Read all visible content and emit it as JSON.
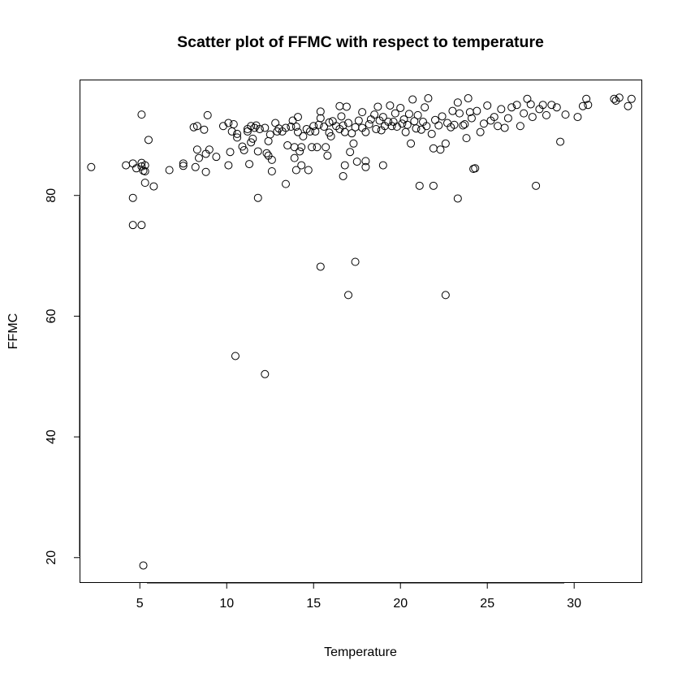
{
  "chart_data": {
    "type": "scatter",
    "title": "Scatter plot of FFMC with respect to temperature",
    "xlabel": "Temperature",
    "ylabel": "FFMC",
    "xlim": [
      1.53,
      33.87
    ],
    "ylim": [
      15.8,
      99.2
    ],
    "xticks": [
      5,
      10,
      15,
      20,
      25,
      30
    ],
    "yticks": [
      20,
      40,
      60,
      80
    ],
    "xtick_labels": [
      "5",
      "10",
      "15",
      "20",
      "25",
      "30"
    ],
    "ytick_labels": [
      "20",
      "40",
      "60",
      "80"
    ],
    "grid": false,
    "marker": "open-circle",
    "marker_color": "#000000",
    "points": [
      [
        2.2,
        84.7
      ],
      [
        4.2,
        85.0
      ],
      [
        4.6,
        85.3
      ],
      [
        4.6,
        79.6
      ],
      [
        4.6,
        75.1
      ],
      [
        4.8,
        84.5
      ],
      [
        5.1,
        85.4
      ],
      [
        5.1,
        84.8
      ],
      [
        5.1,
        75.1
      ],
      [
        5.1,
        93.4
      ],
      [
        5.2,
        84.1
      ],
      [
        5.2,
        18.7
      ],
      [
        5.3,
        82.1
      ],
      [
        5.3,
        84.0
      ],
      [
        5.3,
        85.0
      ],
      [
        5.5,
        89.2
      ],
      [
        5.8,
        81.5
      ],
      [
        6.7,
        84.2
      ],
      [
        7.5,
        84.9
      ],
      [
        7.5,
        85.3
      ],
      [
        8.1,
        91.3
      ],
      [
        8.2,
        84.7
      ],
      [
        8.3,
        87.6
      ],
      [
        8.3,
        91.5
      ],
      [
        8.4,
        86.2
      ],
      [
        8.7,
        90.9
      ],
      [
        8.8,
        83.9
      ],
      [
        8.8,
        86.9
      ],
      [
        8.9,
        93.3
      ],
      [
        9.0,
        87.6
      ],
      [
        9.4,
        86.4
      ],
      [
        9.8,
        91.5
      ],
      [
        10.1,
        92.0
      ],
      [
        10.1,
        85.0
      ],
      [
        10.2,
        87.2
      ],
      [
        10.3,
        90.6
      ],
      [
        10.4,
        91.8
      ],
      [
        10.5,
        53.4
      ],
      [
        10.6,
        89.6
      ],
      [
        10.6,
        90.2
      ],
      [
        10.9,
        88.1
      ],
      [
        11.0,
        87.5
      ],
      [
        11.2,
        91.0
      ],
      [
        11.2,
        90.6
      ],
      [
        11.3,
        85.2
      ],
      [
        11.4,
        88.8
      ],
      [
        11.4,
        91.5
      ],
      [
        11.5,
        89.4
      ],
      [
        11.6,
        91.2
      ],
      [
        11.7,
        91.6
      ],
      [
        11.8,
        79.6
      ],
      [
        11.8,
        87.3
      ],
      [
        11.9,
        91.0
      ],
      [
        12.2,
        91.2
      ],
      [
        12.2,
        50.4
      ],
      [
        12.3,
        87.0
      ],
      [
        12.4,
        86.6
      ],
      [
        12.4,
        89.0
      ],
      [
        12.5,
        90.1
      ],
      [
        12.6,
        85.9
      ],
      [
        12.6,
        84.0
      ],
      [
        12.8,
        92.0
      ],
      [
        12.9,
        90.6
      ],
      [
        13.0,
        91.1
      ],
      [
        13.2,
        90.6
      ],
      [
        13.4,
        91.2
      ],
      [
        13.4,
        81.9
      ],
      [
        13.5,
        88.3
      ],
      [
        13.7,
        91.4
      ],
      [
        13.8,
        92.4
      ],
      [
        13.9,
        86.2
      ],
      [
        13.9,
        88.0
      ],
      [
        14.0,
        91.4
      ],
      [
        14.0,
        84.2
      ],
      [
        14.1,
        90.5
      ],
      [
        14.1,
        93.0
      ],
      [
        14.2,
        87.3
      ],
      [
        14.3,
        88.0
      ],
      [
        14.3,
        85.0
      ],
      [
        14.4,
        89.8
      ],
      [
        14.6,
        91.0
      ],
      [
        14.7,
        84.2
      ],
      [
        14.8,
        90.6
      ],
      [
        14.9,
        88.0
      ],
      [
        15.0,
        91.5
      ],
      [
        15.1,
        90.6
      ],
      [
        15.2,
        88.0
      ],
      [
        15.3,
        91.7
      ],
      [
        15.4,
        92.8
      ],
      [
        15.4,
        68.2
      ],
      [
        15.4,
        93.9
      ],
      [
        15.6,
        91.4
      ],
      [
        15.7,
        88.0
      ],
      [
        15.8,
        86.6
      ],
      [
        15.9,
        92.1
      ],
      [
        15.9,
        90.4
      ],
      [
        16.0,
        89.8
      ],
      [
        16.1,
        92.3
      ],
      [
        16.3,
        91.5
      ],
      [
        16.5,
        91.0
      ],
      [
        16.5,
        94.8
      ],
      [
        16.6,
        93.1
      ],
      [
        16.7,
        91.6
      ],
      [
        16.7,
        83.2
      ],
      [
        16.8,
        90.5
      ],
      [
        16.8,
        85.0
      ],
      [
        16.9,
        94.7
      ],
      [
        17.0,
        92.0
      ],
      [
        17.0,
        63.5
      ],
      [
        17.1,
        87.2
      ],
      [
        17.2,
        90.3
      ],
      [
        17.3,
        88.6
      ],
      [
        17.4,
        69.0
      ],
      [
        17.4,
        91.3
      ],
      [
        17.5,
        85.6
      ],
      [
        17.6,
        92.4
      ],
      [
        17.8,
        91.2
      ],
      [
        17.8,
        93.8
      ],
      [
        18.0,
        90.5
      ],
      [
        18.0,
        85.7
      ],
      [
        18.0,
        84.7
      ],
      [
        18.2,
        91.8
      ],
      [
        18.3,
        92.6
      ],
      [
        18.5,
        93.4
      ],
      [
        18.6,
        91.0
      ],
      [
        18.7,
        94.7
      ],
      [
        18.8,
        92.4
      ],
      [
        18.9,
        90.8
      ],
      [
        19.0,
        93.0
      ],
      [
        19.0,
        85.0
      ],
      [
        19.1,
        91.5
      ],
      [
        19.3,
        92.2
      ],
      [
        19.4,
        94.9
      ],
      [
        19.5,
        91.5
      ],
      [
        19.6,
        92.2
      ],
      [
        19.7,
        93.6
      ],
      [
        19.8,
        91.4
      ],
      [
        20.0,
        94.5
      ],
      [
        20.1,
        91.9
      ],
      [
        20.2,
        92.6
      ],
      [
        20.3,
        90.5
      ],
      [
        20.4,
        91.7
      ],
      [
        20.5,
        93.5
      ],
      [
        20.6,
        88.6
      ],
      [
        20.7,
        95.9
      ],
      [
        20.8,
        92.3
      ],
      [
        20.9,
        91.1
      ],
      [
        21.0,
        93.3
      ],
      [
        21.1,
        81.6
      ],
      [
        21.2,
        90.9
      ],
      [
        21.3,
        92.2
      ],
      [
        21.4,
        94.6
      ],
      [
        21.5,
        91.5
      ],
      [
        21.6,
        96.1
      ],
      [
        21.8,
        90.2
      ],
      [
        21.9,
        87.8
      ],
      [
        21.9,
        81.6
      ],
      [
        22.0,
        92.5
      ],
      [
        22.2,
        91.6
      ],
      [
        22.3,
        87.6
      ],
      [
        22.4,
        93.1
      ],
      [
        22.6,
        63.5
      ],
      [
        22.6,
        88.6
      ],
      [
        22.7,
        92.0
      ],
      [
        22.9,
        91.3
      ],
      [
        23.0,
        94.0
      ],
      [
        23.1,
        91.7
      ],
      [
        23.3,
        95.4
      ],
      [
        23.3,
        79.5
      ],
      [
        23.4,
        93.6
      ],
      [
        23.6,
        91.6
      ],
      [
        23.7,
        91.8
      ],
      [
        23.8,
        89.5
      ],
      [
        23.9,
        96.1
      ],
      [
        24.0,
        93.8
      ],
      [
        24.1,
        92.8
      ],
      [
        24.2,
        84.4
      ],
      [
        24.3,
        84.5
      ],
      [
        24.4,
        94.0
      ],
      [
        24.6,
        90.5
      ],
      [
        24.8,
        91.9
      ],
      [
        25.0,
        94.9
      ],
      [
        25.2,
        92.4
      ],
      [
        25.4,
        93.0
      ],
      [
        25.6,
        91.5
      ],
      [
        25.8,
        94.3
      ],
      [
        26.0,
        91.2
      ],
      [
        26.2,
        92.8
      ],
      [
        26.4,
        94.6
      ],
      [
        26.7,
        95.0
      ],
      [
        26.9,
        91.5
      ],
      [
        27.1,
        93.6
      ],
      [
        27.3,
        96.0
      ],
      [
        27.5,
        95.1
      ],
      [
        27.6,
        93.0
      ],
      [
        27.8,
        81.6
      ],
      [
        28.0,
        94.3
      ],
      [
        28.2,
        95.0
      ],
      [
        28.4,
        93.3
      ],
      [
        28.7,
        95.0
      ],
      [
        29.0,
        94.6
      ],
      [
        29.2,
        88.9
      ],
      [
        29.5,
        93.4
      ],
      [
        30.2,
        93.0
      ],
      [
        30.5,
        94.8
      ],
      [
        30.7,
        96.0
      ],
      [
        30.8,
        95.0
      ],
      [
        32.3,
        96.0
      ],
      [
        32.4,
        95.7
      ],
      [
        32.6,
        96.2
      ],
      [
        33.1,
        94.8
      ],
      [
        33.3,
        96.0
      ]
    ]
  }
}
